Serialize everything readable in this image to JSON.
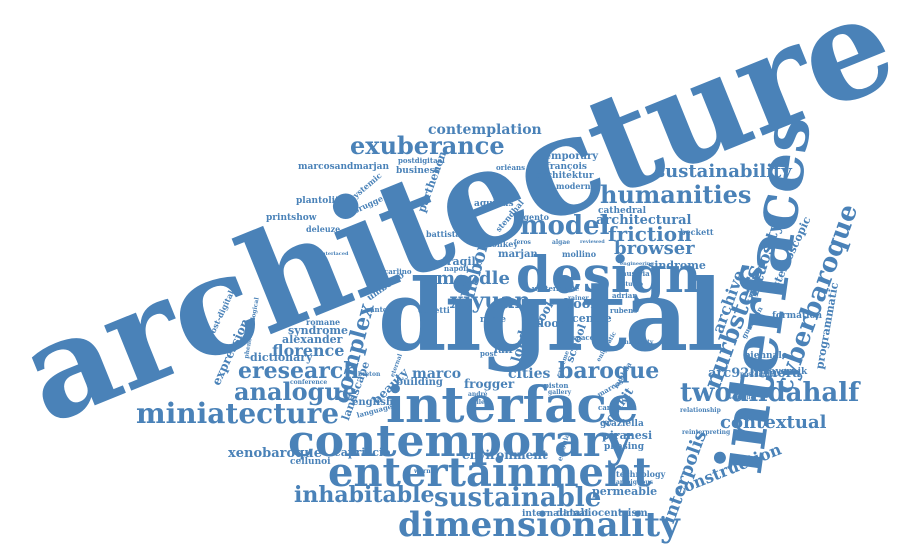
{
  "colors": {
    "text": "#4a82b8",
    "background": "#ffffff"
  },
  "words": {
    "architecture": "architecture",
    "digital": "digital",
    "interfaces": "interfaces",
    "interface": "interface",
    "design": "design",
    "contemporary": "contemporary",
    "entertainment": "entertainment",
    "dimensionality": "dimensionality",
    "sustainable": "sustainable",
    "inhabitable": "inhabitable",
    "miniatecture": "miniatecture",
    "analogue": "analogue",
    "eresearch": "eresearch",
    "exuberance": "exuberance",
    "humanities": "humanities",
    "model": "model",
    "friction": "friction",
    "browser": "browser",
    "sustainability": "sustainability",
    "cyberbaroque": "cyberbaroque",
    "twoandahalf": "twoandahalf",
    "interpolis": "interpolis",
    "nurbsters": "nurbsters",
    "archive": "archive",
    "virtuosity": "virtuosity",
    "baroque": "baroque",
    "xiyuan": "xiyuan",
    "complex": "complex",
    "moodle": "moodle",
    "lisbon": "lisbon",
    "contemplation": "contemplation",
    "contextual": "contextual",
    "construction": "construction",
    "xenobaroque": "xenobaroque",
    "florence": "florence",
    "alexander": "alexander",
    "syndrome": "syndrome",
    "dictionary": "dictionary",
    "expression": "expression",
    "marco": "marco",
    "cities": "cities",
    "frogger": "frogger",
    "environment": "environment",
    "capriccio": "capriccio",
    "cellunoi": "cellunoi",
    "permeable": "permeable",
    "international": "international",
    "databiocentrism": "databiocentrism",
    "technology": "technology",
    "arc92himera": "arc92himera",
    "biennale": "biennale",
    "programmatic": "programmatic",
    "stereoscopic": "stereoscopic",
    "formation": "formation",
    "mayernik": "mayernik",
    "temporary": "temporary",
    "francois": "françois",
    "architektur": "architektur",
    "modern": "modern",
    "parthenon": "parthenon",
    "business": "business",
    "postdigitaal": "postdigitaal",
    "marcosandmarjan": "marcosandmarjan",
    "plantolith": "plantolith",
    "debrugge": "debrugge",
    "systemic": "systemic",
    "printshow": "printshow",
    "deleuze": "deleuze",
    "aquinas": "aquinas",
    "stendhal": "stendhal",
    "cathedral": "cathedral",
    "architectural": "architectural",
    "argento": "argento",
    "beckett": "beckett",
    "batista": "battista",
    "donkey": "donkey",
    "fragile": "fragile",
    "marjan": "marjan",
    "mollino": "mollino",
    "sindrome": "sindrome",
    "napoli": "napoli",
    "rome": "rome",
    "floor": "floor",
    "tool": "tool",
    "colletti": "colletti",
    "umberto": "umberto",
    "santon": "santon",
    "book": "book",
    "centre": "centre",
    "rubens": "rubens",
    "adrian": "adrian",
    "london": "london",
    "school": "school",
    "space": "space",
    "fair": "fair",
    "post": "post",
    "building": "building",
    "landscape": "landscape",
    "beauty": "beauty",
    "english": "english",
    "romane": "romane",
    "piranesi": "piranesi",
    "graziella": "graziella",
    "phasing": "phasing",
    "toolkit": "toolkit",
    "carpo": "carpo",
    "piston": "piston",
    "walter": "walter",
    "movie": "movie",
    "austria": "austria",
    "carlino": "carlino",
    "conference": "conference",
    "ambiguous": "ambiguous",
    "relationship": "relationship",
    "reinterpreting": "reinterpreting",
    "gallery": "gallery",
    "orleans": "orléans",
    "feros": "feros",
    "algae": "algae",
    "reviewed": "reviewed",
    "studio": "studio",
    "guardian": "guardian",
    "university": "university",
    "phenomenological": "phenomenological",
    "postdigital": "post-digital",
    "language": "language",
    "gilles": "gilles",
    "andre": "andré",
    "breton": "breton",
    "extreme": "extreme",
    "estonia": "estonia",
    "interlaced": "interlaced",
    "aesthetic": "aesthetic",
    "postdigital2": "postdigital",
    "eternal": "eternal",
    "warner": "warner",
    "rainer": "rainer",
    "engineering": "engineering",
    "marcos": "marcos",
    "lambda": "lambda",
    "enigmatic": "enigmatic"
  }
}
